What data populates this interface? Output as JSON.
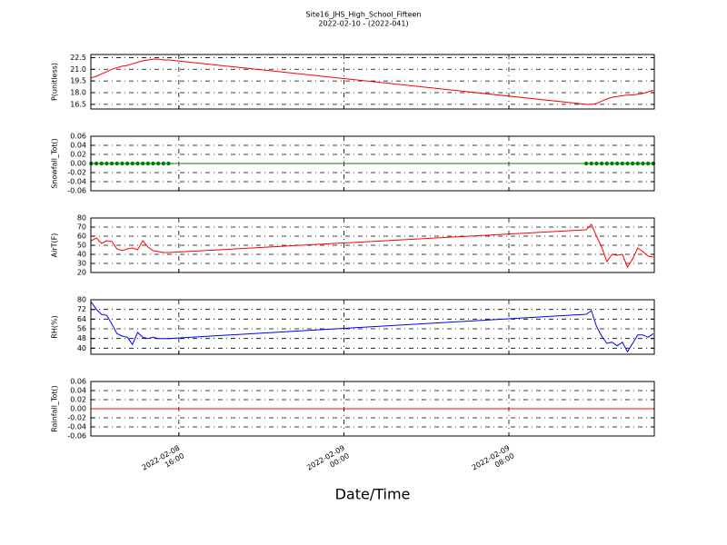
{
  "chart_data": {
    "title": "Site16_JHS_High_School_Fifteen",
    "subtitle": "2022-02-10 - (2022-041)",
    "x_label": "Date/Time",
    "xlim": [
      "2022-02-08 11:44",
      "2022-02-09 15:03"
    ],
    "xticks": [
      "2022-02-08 16:00",
      "2022-02-09 00:00",
      "2022-02-09 08:00"
    ],
    "grid": true,
    "x": [
      "2022-02-08 11:45",
      "2022-02-08 12:00",
      "2022-02-08 12:15",
      "2022-02-08 12:30",
      "2022-02-08 12:45",
      "2022-02-08 13:00",
      "2022-02-08 13:15",
      "2022-02-08 13:30",
      "2022-02-08 13:45",
      "2022-02-08 14:00",
      "2022-02-08 14:15",
      "2022-02-08 14:30",
      "2022-02-08 14:45",
      "2022-02-08 15:00",
      "2022-02-08 15:15",
      "2022-02-08 15:30",
      "2022-02-09 11:45",
      "2022-02-09 12:00",
      "2022-02-09 12:15",
      "2022-02-09 12:30",
      "2022-02-09 12:45",
      "2022-02-09 13:00",
      "2022-02-09 13:15",
      "2022-02-09 13:30",
      "2022-02-09 13:45",
      "2022-02-09 14:00",
      "2022-02-09 14:15",
      "2022-02-09 14:30",
      "2022-02-09 14:45",
      "2022-02-09 15:00"
    ],
    "panels": [
      {
        "type": "line",
        "y_label": "P(unitless)",
        "color": "#ff0000",
        "markers": false,
        "ylim": [
          15.9,
          22.9
        ],
        "yticks": [
          16.5,
          {
            "value": 18,
            "label": "18.0"
          },
          19.5,
          {
            "value": 21,
            "label": "21.0"
          },
          22.5
        ],
        "values": [
          19.9,
          20.1,
          20.4,
          20.7,
          21.0,
          21.2,
          21.4,
          21.5,
          21.7,
          21.9,
          22.1,
          22.2,
          22.3,
          22.3,
          22.2,
          22.2,
          16.5,
          16.5,
          16.6,
          16.9,
          17.2,
          17.4,
          17.5,
          17.6,
          17.7,
          17.7,
          17.8,
          17.9,
          18.1,
          18.3
        ]
      },
      {
        "type": "line",
        "y_label": "Snowfall_Tot()",
        "color": "#008000",
        "markers": true,
        "ylim": [
          -0.06,
          0.06
        ],
        "yticks": [
          -0.06,
          -0.04,
          -0.02,
          {
            "value": 0,
            "label": "0.00"
          },
          0.02,
          0.04,
          0.06
        ],
        "values": [
          0,
          0,
          0,
          0,
          0,
          0,
          0,
          0,
          0,
          0,
          0,
          0,
          0,
          0,
          0,
          0,
          0,
          0,
          0,
          0,
          0,
          0,
          0,
          0,
          0,
          0,
          0,
          0,
          0,
          0
        ]
      },
      {
        "type": "line",
        "y_label": "AirT(F)",
        "color": "#ff0000",
        "markers": false,
        "ylim": [
          20,
          80
        ],
        "yticks": [
          20,
          30,
          40,
          50,
          60,
          70,
          80
        ],
        "values": [
          55,
          58,
          52,
          55,
          54,
          46,
          44,
          46,
          47,
          45,
          55,
          48,
          44,
          43,
          42,
          42,
          67,
          73,
          60,
          48,
          32,
          40,
          39,
          40,
          26,
          35,
          47,
          43,
          38,
          37
        ]
      },
      {
        "type": "line",
        "y_label": "RH(%)",
        "color": "#0000ff",
        "markers": false,
        "ylim": [
          35,
          80
        ],
        "yticks": [
          40,
          48,
          56,
          64,
          72,
          80
        ],
        "values": [
          78,
          72,
          68,
          67,
          60,
          52,
          50,
          49,
          43,
          53,
          49,
          48,
          49,
          48,
          48,
          48,
          68,
          71,
          58,
          50,
          44,
          45,
          42,
          45,
          37,
          44,
          51,
          51,
          49,
          52
        ]
      },
      {
        "type": "line",
        "y_label": "Rainfall_Tot()",
        "color": "#ff0000",
        "markers": false,
        "ylim": [
          -0.06,
          0.06
        ],
        "yticks": [
          -0.06,
          -0.04,
          -0.02,
          {
            "value": 0,
            "label": "0.00"
          },
          0.02,
          0.04,
          0.06
        ],
        "values": [
          0,
          0,
          0,
          0,
          0,
          0,
          0,
          0,
          0,
          0,
          0,
          0,
          0,
          0,
          0,
          0,
          0,
          0,
          0,
          0,
          0,
          0,
          0,
          0,
          0,
          0,
          0,
          0,
          0,
          0
        ]
      }
    ]
  }
}
